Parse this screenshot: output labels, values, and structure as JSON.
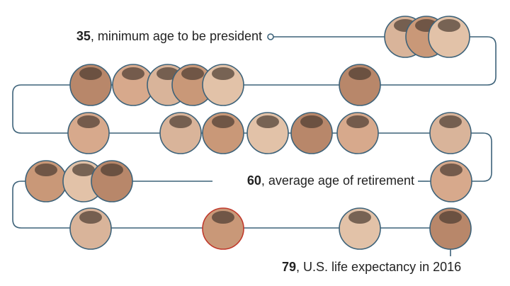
{
  "annotations": [
    {
      "number": "35",
      "text": ", minimum age to be president"
    },
    {
      "number": "60",
      "text": ", average age of retirement"
    },
    {
      "number": "79",
      "text": ", U.S. life expectancy in 2016"
    }
  ]
}
